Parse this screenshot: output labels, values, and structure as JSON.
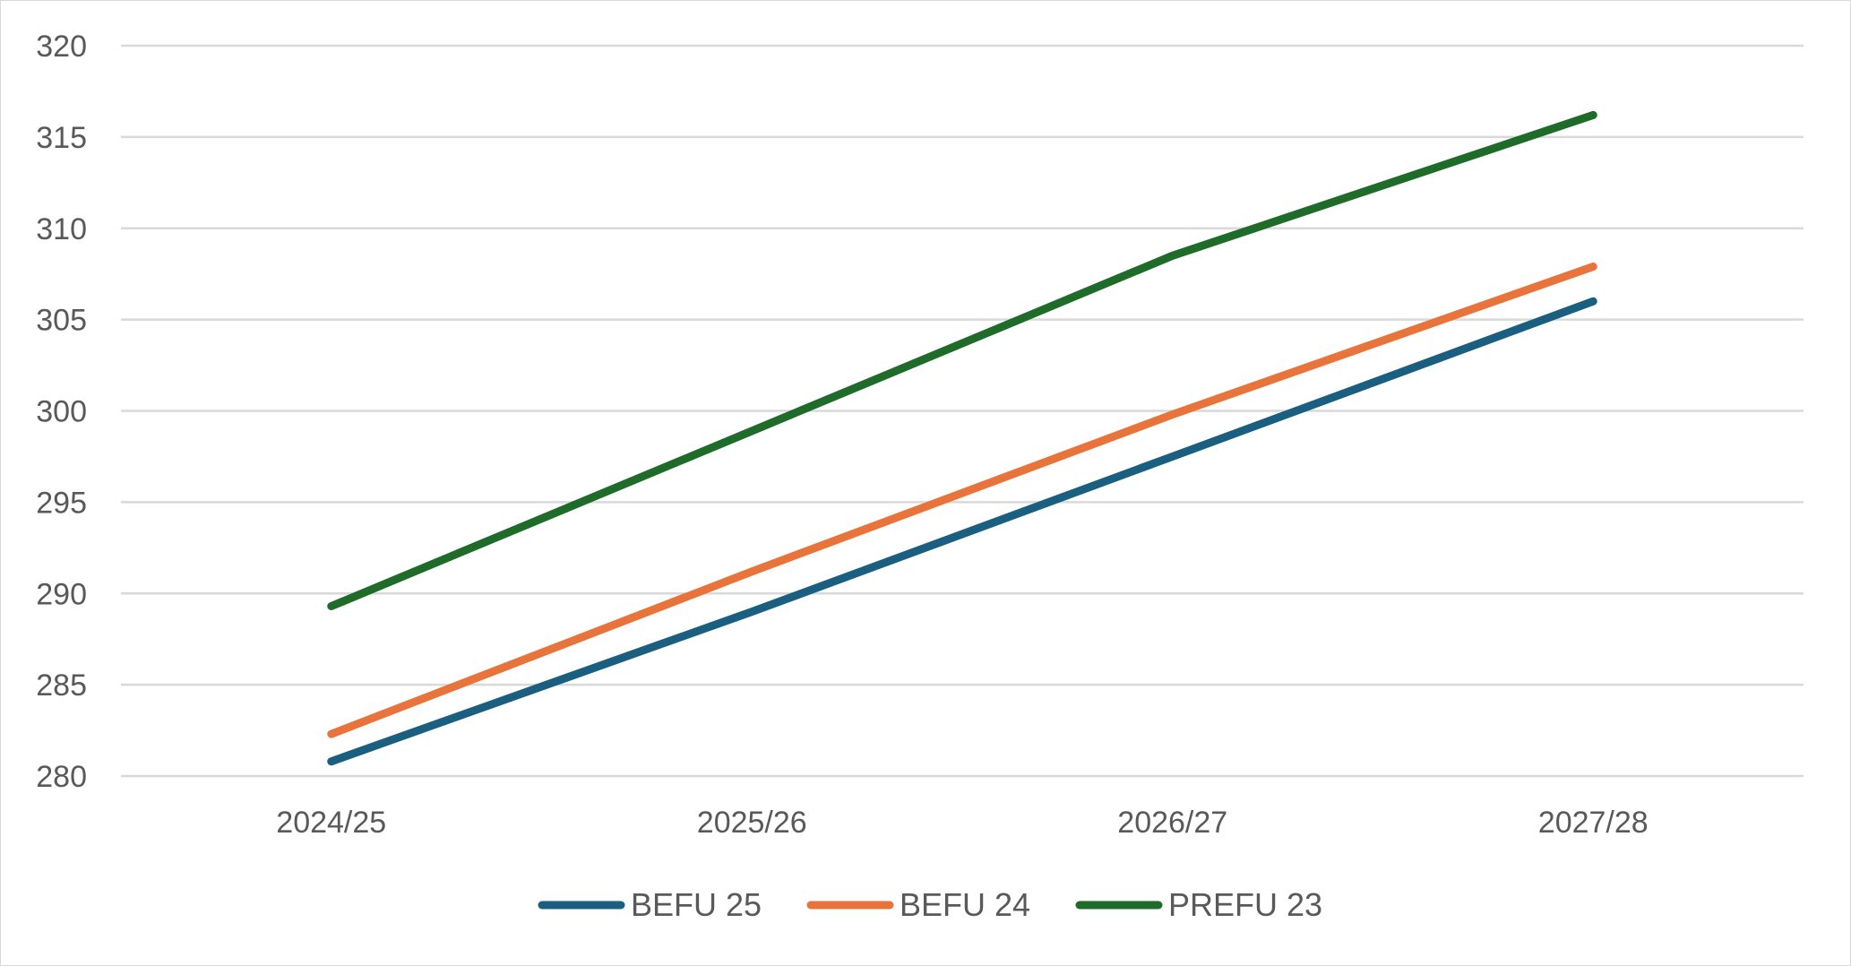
{
  "chart_data": {
    "type": "line",
    "title": "",
    "xlabel": "",
    "ylabel": "",
    "categories": [
      "2024/25",
      "2025/26",
      "2026/27",
      "2027/28"
    ],
    "ylim": [
      280,
      320
    ],
    "yticks": [
      280,
      285,
      290,
      295,
      300,
      305,
      310,
      315,
      320
    ],
    "grid": true,
    "legend_position": "bottom",
    "series": [
      {
        "name": "BEFU 25",
        "color": "#1a5f80",
        "values": [
          280.8,
          289.0,
          297.5,
          306.0
        ]
      },
      {
        "name": "BEFU 24",
        "color": "#e8743b",
        "values": [
          282.3,
          291.2,
          299.8,
          307.9
        ]
      },
      {
        "name": "PREFU 23",
        "color": "#1e6b2a",
        "values": [
          289.3,
          298.9,
          308.5,
          316.2
        ]
      }
    ]
  }
}
